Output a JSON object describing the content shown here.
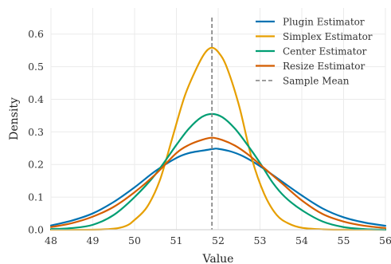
{
  "chart_data": {
    "type": "line",
    "xlabel": "Value",
    "ylabel": "Density",
    "xlim": [
      48,
      56
    ],
    "ylim": [
      0,
      0.68
    ],
    "x_ticks": [
      "48",
      "49",
      "50",
      "51",
      "52",
      "53",
      "54",
      "55",
      "56"
    ],
    "y_ticks": [
      "0.0",
      "0.1",
      "0.2",
      "0.3",
      "0.4",
      "0.5",
      "0.6"
    ],
    "grid": true,
    "legend_position": "top-right",
    "sample_mean": {
      "name": "Sample Mean",
      "x": 51.85,
      "color": "#7f7f7f"
    },
    "series": [
      {
        "name": "Plugin Estimator",
        "color": "#0072b2",
        "x": [
          48.0,
          48.5,
          49.0,
          49.5,
          50.0,
          50.5,
          51.0,
          51.3,
          51.6,
          51.9,
          52.0,
          52.3,
          52.6,
          53.0,
          53.5,
          54.0,
          54.5,
          55.0,
          55.5,
          56.0
        ],
        "y": [
          0.013,
          0.028,
          0.05,
          0.085,
          0.13,
          0.18,
          0.22,
          0.235,
          0.242,
          0.248,
          0.248,
          0.24,
          0.225,
          0.195,
          0.15,
          0.105,
          0.065,
          0.038,
          0.022,
          0.012
        ]
      },
      {
        "name": "Simplex Estimator",
        "color": "#e69f00",
        "x": [
          48.0,
          49.0,
          49.5,
          49.8,
          50.0,
          50.3,
          50.6,
          50.9,
          51.2,
          51.5,
          51.7,
          51.85,
          52.0,
          52.2,
          52.5,
          52.8,
          53.1,
          53.4,
          53.7,
          54.0,
          54.5,
          55.0,
          56.0
        ],
        "y": [
          0.0,
          0.0,
          0.003,
          0.012,
          0.03,
          0.07,
          0.15,
          0.28,
          0.41,
          0.5,
          0.545,
          0.558,
          0.545,
          0.5,
          0.38,
          0.22,
          0.11,
          0.045,
          0.018,
          0.006,
          0.001,
          0.0,
          0.0
        ]
      },
      {
        "name": "Center Estimator",
        "color": "#009e73",
        "x": [
          48.0,
          48.5,
          49.0,
          49.5,
          50.0,
          50.5,
          51.0,
          51.3,
          51.6,
          51.85,
          52.1,
          52.4,
          52.7,
          53.0,
          53.3,
          53.6,
          54.0,
          54.5,
          55.0,
          55.5,
          56.0
        ],
        "y": [
          0.002,
          0.005,
          0.015,
          0.045,
          0.1,
          0.17,
          0.26,
          0.31,
          0.345,
          0.355,
          0.345,
          0.31,
          0.26,
          0.205,
          0.145,
          0.1,
          0.06,
          0.025,
          0.008,
          0.002,
          0.0
        ]
      },
      {
        "name": "Resize Estimator",
        "color": "#d55e00",
        "x": [
          48.0,
          48.5,
          49.0,
          49.5,
          50.0,
          50.5,
          51.0,
          51.3,
          51.6,
          51.85,
          52.1,
          52.4,
          52.7,
          53.0,
          53.5,
          54.0,
          54.5,
          55.0,
          55.5,
          56.0
        ],
        "y": [
          0.008,
          0.02,
          0.04,
          0.07,
          0.115,
          0.17,
          0.235,
          0.26,
          0.275,
          0.282,
          0.275,
          0.258,
          0.232,
          0.2,
          0.145,
          0.09,
          0.048,
          0.025,
          0.012,
          0.005
        ]
      }
    ]
  }
}
